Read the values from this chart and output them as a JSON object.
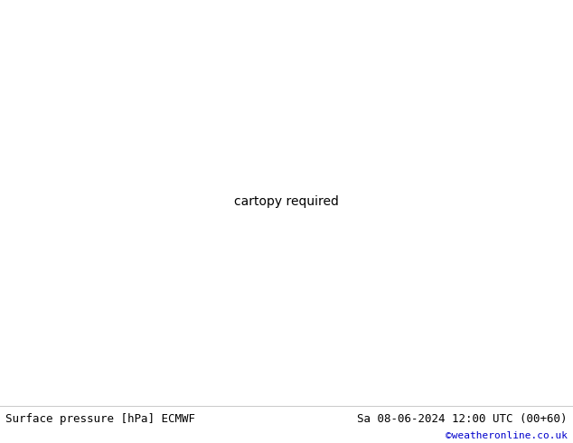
{
  "title_left": "Surface pressure [hPa] ECMWF",
  "title_right": "Sa 08-06-2024 12:00 UTC (00+60)",
  "copyright": "©weatheronline.co.uk",
  "bg_color": "#d8d8d8",
  "land_color": "#aad4a0",
  "border_color": "#888888",
  "ocean_color": "#d8d8d8",
  "isobar_blue": "#0000dd",
  "isobar_red": "#dd0000",
  "isobar_black": "#111111",
  "label_blue": "#0000dd",
  "label_red": "#dd0000",
  "label_black": "#111111",
  "extent": [
    -25.0,
    18.0,
    43.0,
    62.0
  ],
  "footer_color": "#000000",
  "copyright_color": "#0000cc"
}
